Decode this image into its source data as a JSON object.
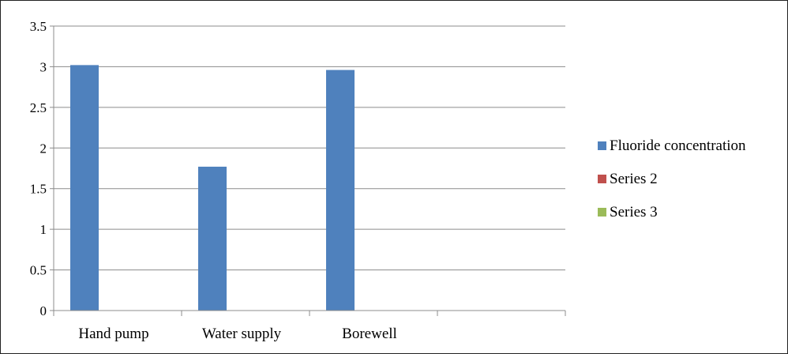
{
  "chart_data": {
    "type": "bar",
    "title": "",
    "xlabel": "",
    "ylabel": "",
    "categories": [
      "Hand pump",
      "Water supply",
      "Borewell",
      ""
    ],
    "series": [
      {
        "name": "Fluoride concentration",
        "color": "#4f81bd",
        "values": [
          3.02,
          1.77,
          2.96,
          null
        ]
      },
      {
        "name": "Series 2",
        "color": "#c0504d",
        "values": [
          null,
          null,
          null,
          null
        ]
      },
      {
        "name": "Series 3",
        "color": "#9bbb59",
        "values": [
          null,
          null,
          null,
          null
        ]
      }
    ],
    "ylim": [
      0,
      3.5
    ],
    "yticks": [
      "0",
      "0.5",
      "1",
      "1.5",
      "2",
      "2.5",
      "3",
      "3.5"
    ],
    "grid": true,
    "legend_position": "right"
  }
}
